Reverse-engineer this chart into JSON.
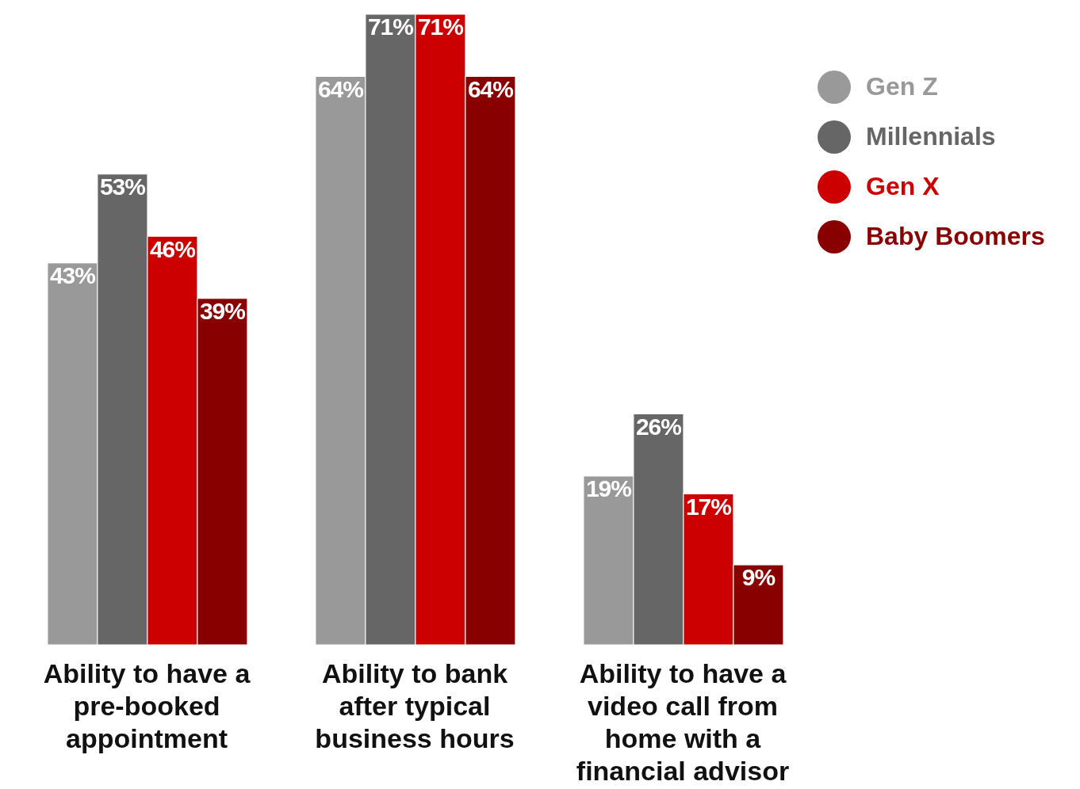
{
  "chart_data": {
    "type": "bar",
    "categories": [
      "Ability to have a pre-booked appointment",
      "Ability to bank after typical business hours",
      "Ability to have a video call from home with a financial advisor"
    ],
    "series": [
      {
        "name": "Gen Z",
        "color": "#999999",
        "values": [
          43,
          64,
          19
        ],
        "value_labels": [
          "43%",
          "64%",
          "19%"
        ]
      },
      {
        "name": "Millennials",
        "color": "#666666",
        "values": [
          53,
          71,
          26
        ],
        "value_labels": [
          "53%",
          "71%",
          "26%"
        ]
      },
      {
        "name": "Gen X",
        "color": "#cc0000",
        "values": [
          46,
          71,
          17
        ],
        "value_labels": [
          "46%",
          "71%",
          "17%"
        ]
      },
      {
        "name": "Baby Boomers",
        "color": "#880000",
        "values": [
          39,
          64,
          9
        ],
        "value_labels": [
          "39%",
          "64%",
          "9%"
        ]
      }
    ],
    "legend": "top right",
    "grid": false
  }
}
